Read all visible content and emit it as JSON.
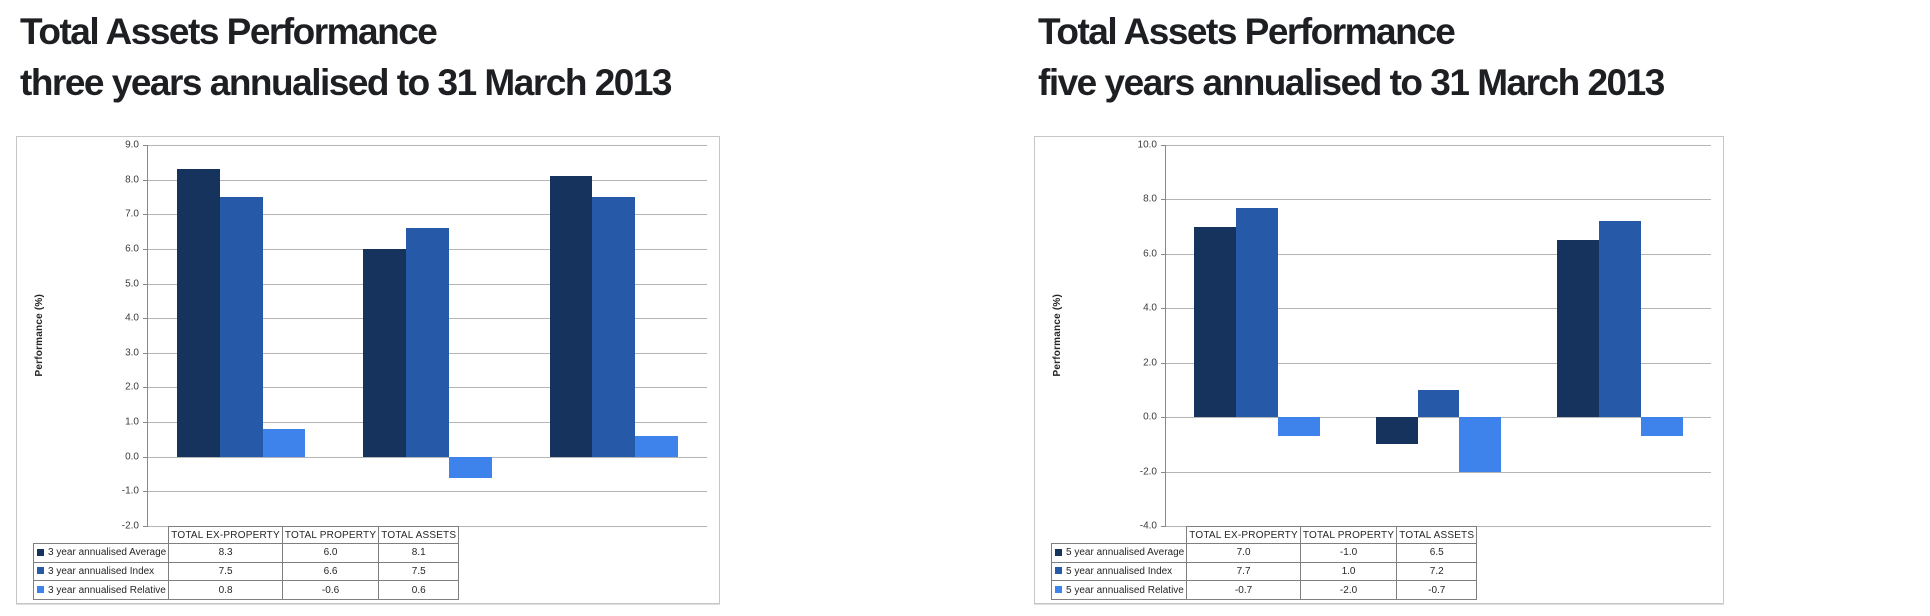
{
  "page": {
    "background": "#ffffff",
    "title_color": "#1d1f22"
  },
  "chart_data": [
    {
      "type": "bar",
      "title": "Total Assets Performance three years annualised to 31 March 2013",
      "title_lines": [
        "Total Assets Performance",
        "three years annualised to 31 March 2013"
      ],
      "ylabel": "Performance (%)",
      "ylim": [
        -2.0,
        9.0
      ],
      "ytick_step": 1.0,
      "grid": true,
      "legend_position": "table-left",
      "categories": [
        "TOTAL EX-PROPERTY",
        "TOTAL PROPERTY",
        "TOTAL ASSETS"
      ],
      "series": [
        {
          "name": "3 year annualised Average",
          "color": "#16335E",
          "values": [
            8.3,
            6.0,
            8.1
          ]
        },
        {
          "name": "3 year annualised Index",
          "color": "#2659A8",
          "values": [
            7.5,
            6.6,
            7.5
          ]
        },
        {
          "name": "3 year annualised Relative",
          "color": "#3E82EC",
          "values": [
            0.8,
            -0.6,
            0.6
          ]
        }
      ]
    },
    {
      "type": "bar",
      "title": "Total Assets Performance five years annualised to 31 March 2013",
      "title_lines": [
        "Total Assets Performance",
        "five years annualised to 31 March 2013"
      ],
      "ylabel": "Performance (%)",
      "ylim": [
        -4.0,
        10.0
      ],
      "ytick_step": 2.0,
      "grid": true,
      "legend_position": "table-left",
      "categories": [
        "TOTAL EX-PROPERTY",
        "TOTAL PROPERTY",
        "TOTAL ASSETS"
      ],
      "series": [
        {
          "name": "5 year annualised Average",
          "color": "#16335E",
          "values": [
            7.0,
            -1.0,
            6.5
          ]
        },
        {
          "name": "5 year annualised Index",
          "color": "#2659A8",
          "values": [
            7.7,
            1.0,
            7.2
          ]
        },
        {
          "name": "5 year annualised Relative",
          "color": "#3E82EC",
          "values": [
            -0.7,
            -2.0,
            -0.7
          ]
        }
      ]
    }
  ]
}
